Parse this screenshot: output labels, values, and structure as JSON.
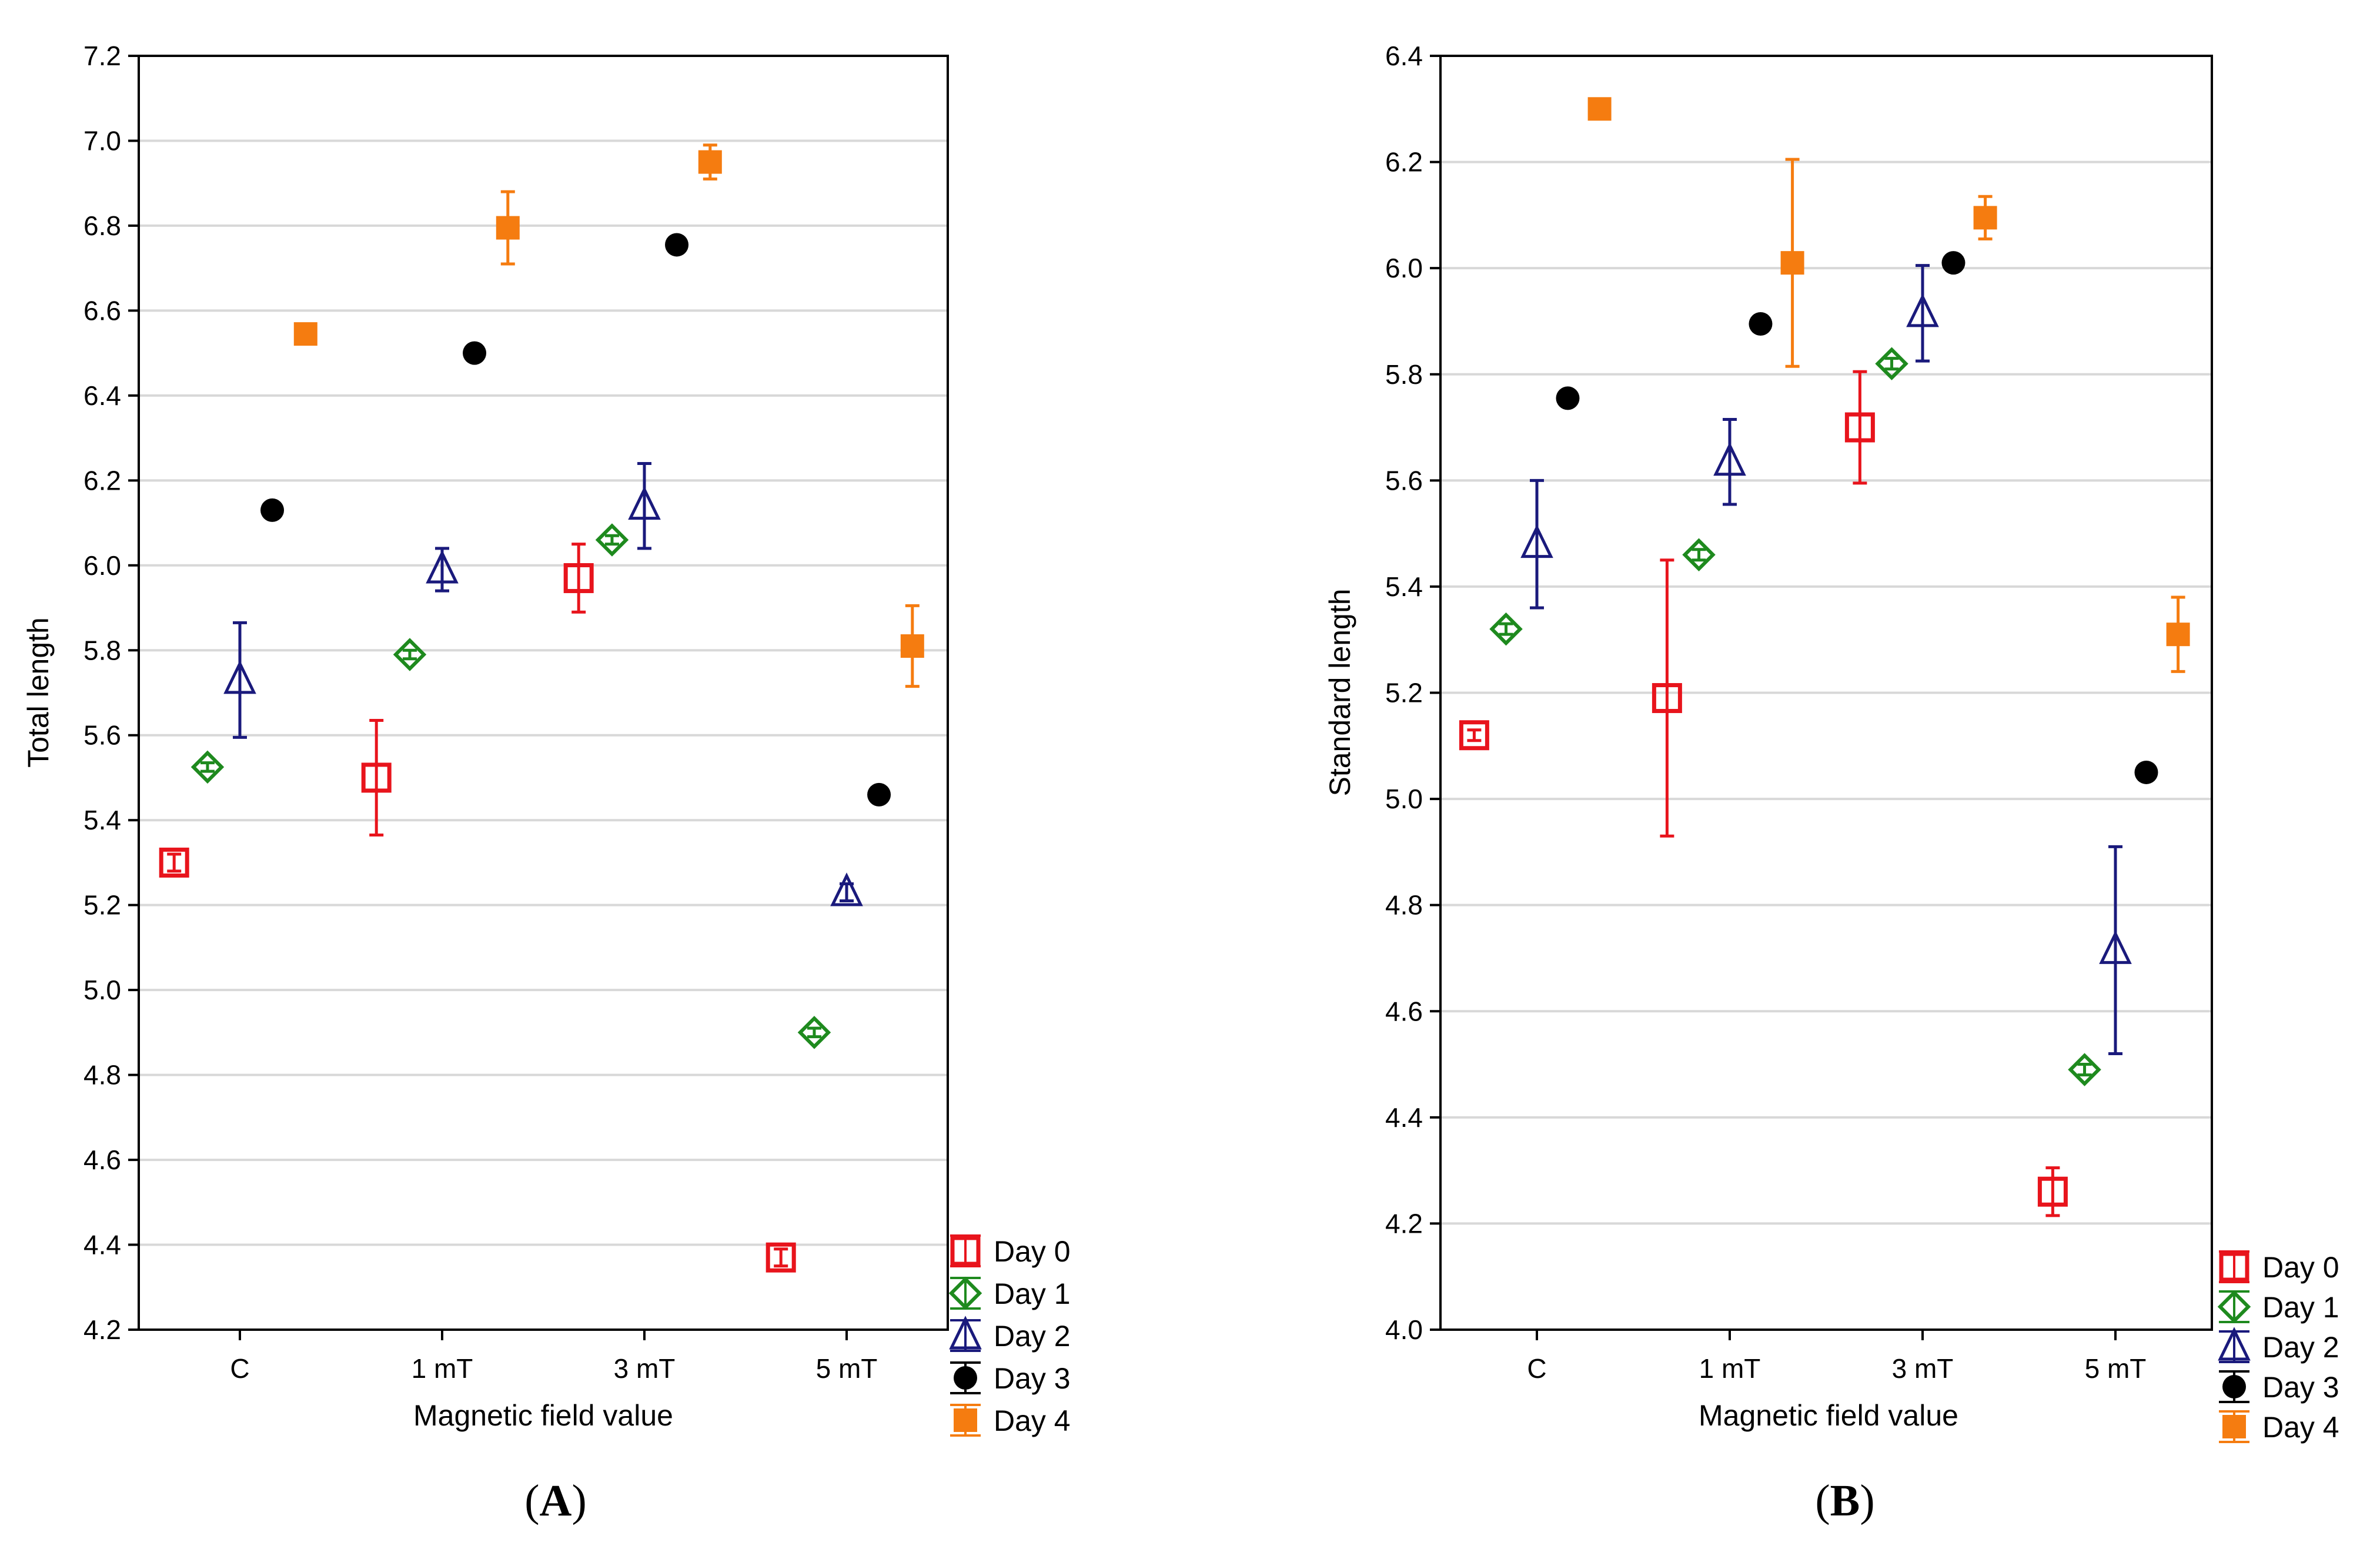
{
  "colors": {
    "Day 0": "#e8141c",
    "Day 1": "#1e8a1e",
    "Day 2": "#1a1a7c",
    "Day 3": "#000000",
    "Day 4": "#f57c10",
    "grid": "#d8d8d8",
    "axis": "#000000"
  },
  "markers": {
    "Day 0": "square-open",
    "Day 1": "diamond-open",
    "Day 2": "triangle-open",
    "Day 3": "circle-filled",
    "Day 4": "square-filled"
  },
  "chart_data": [
    {
      "id": "A",
      "type": "scatter",
      "panel_label": "A",
      "xlabel": "Magnetic field value",
      "ylabel": "Total length",
      "categories": [
        "C",
        "1 mT",
        "3 mT",
        "5 mT"
      ],
      "ylim": [
        4.2,
        7.2
      ],
      "yticks": [
        "4.2",
        "4.4",
        "4.6",
        "4.8",
        "5.0",
        "5.2",
        "5.4",
        "5.6",
        "5.8",
        "6.0",
        "6.2",
        "6.4",
        "6.6",
        "6.8",
        "7.0",
        "7.2"
      ],
      "grid": true,
      "legend_position": "outside-bottom-right",
      "series": [
        {
          "name": "Day 0",
          "values": [
            5.3,
            5.5,
            5.97,
            4.37
          ],
          "err": [
            0.02,
            0.135,
            0.08,
            0.02
          ]
        },
        {
          "name": "Day 1",
          "values": [
            5.525,
            5.79,
            6.06,
            4.9
          ],
          "err": [
            0.01,
            0.01,
            0.01,
            0.01
          ]
        },
        {
          "name": "Day 2",
          "values": [
            5.73,
            5.99,
            6.14,
            5.23
          ],
          "err": [
            0.135,
            0.05,
            0.1,
            0.02
          ]
        },
        {
          "name": "Day 3",
          "values": [
            6.13,
            6.5,
            6.755,
            5.46
          ],
          "err": [
            0.0,
            0.0,
            0.0,
            0.0
          ]
        },
        {
          "name": "Day 4",
          "values": [
            6.545,
            6.795,
            6.95,
            5.81
          ],
          "err": [
            0.0,
            0.085,
            0.04,
            0.095
          ]
        }
      ]
    },
    {
      "id": "B",
      "type": "scatter",
      "panel_label": "B",
      "xlabel": "Magnetic field value",
      "ylabel": "Standard length",
      "categories": [
        "C",
        "1 mT",
        "3 mT",
        "5 mT"
      ],
      "ylim": [
        4.0,
        6.4
      ],
      "yticks": [
        "4.0",
        "4.2",
        "4.4",
        "4.6",
        "4.8",
        "5.0",
        "5.2",
        "5.4",
        "5.6",
        "5.8",
        "6.0",
        "6.2",
        "6.4"
      ],
      "grid": true,
      "legend_position": "outside-bottom-right",
      "series": [
        {
          "name": "Day 0",
          "values": [
            5.12,
            5.19,
            5.7,
            4.26
          ],
          "err": [
            0.01,
            0.26,
            0.105,
            0.045
          ]
        },
        {
          "name": "Day 1",
          "values": [
            5.32,
            5.46,
            5.82,
            4.49
          ],
          "err": [
            0.01,
            0.01,
            0.01,
            0.01
          ]
        },
        {
          "name": "Day 2",
          "values": [
            5.48,
            5.635,
            5.915,
            4.715
          ],
          "err": [
            0.12,
            0.08,
            0.09,
            0.195
          ]
        },
        {
          "name": "Day 3",
          "values": [
            5.755,
            5.895,
            6.01,
            5.05
          ],
          "err": [
            0.0,
            0.0,
            0.0,
            0.0
          ]
        },
        {
          "name": "Day 4",
          "values": [
            6.3,
            6.01,
            6.095,
            5.31
          ],
          "err": [
            0.0,
            0.195,
            0.04,
            0.07
          ]
        }
      ]
    }
  ]
}
